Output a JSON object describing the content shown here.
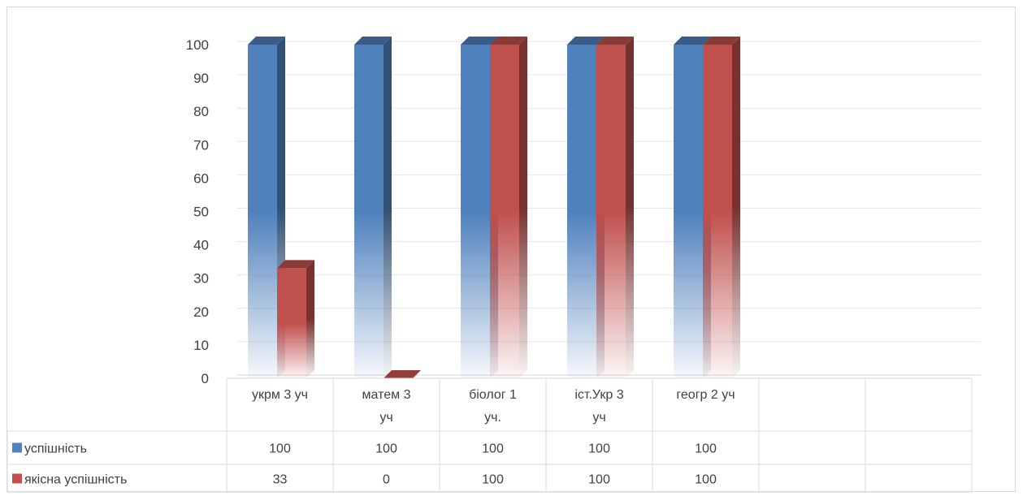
{
  "chart_data": {
    "type": "bar",
    "style": "3d-clustered-column-with-data-table",
    "categories": [
      [
        "укрм",
        "3 уч"
      ],
      [
        "матем",
        "3",
        "уч"
      ],
      [
        "біолог",
        "1",
        "уч."
      ],
      [
        "іст.Укр",
        "3",
        "уч"
      ],
      [
        "геогр 2 уч"
      ],
      [
        ""
      ],
      [
        ""
      ]
    ],
    "series": [
      {
        "name": "успішність",
        "color": "#4f81bd",
        "values": [
          100,
          100,
          100,
          100,
          100,
          null,
          null
        ]
      },
      {
        "name": "якісна успішність",
        "color": "#c0504d",
        "values": [
          33,
          0,
          100,
          100,
          100,
          null,
          null
        ]
      }
    ],
    "y_ticks": [
      0,
      10,
      20,
      30,
      40,
      50,
      60,
      70,
      80,
      90,
      100
    ],
    "ylim": [
      0,
      100
    ],
    "grid": true,
    "legend": "data-table"
  }
}
